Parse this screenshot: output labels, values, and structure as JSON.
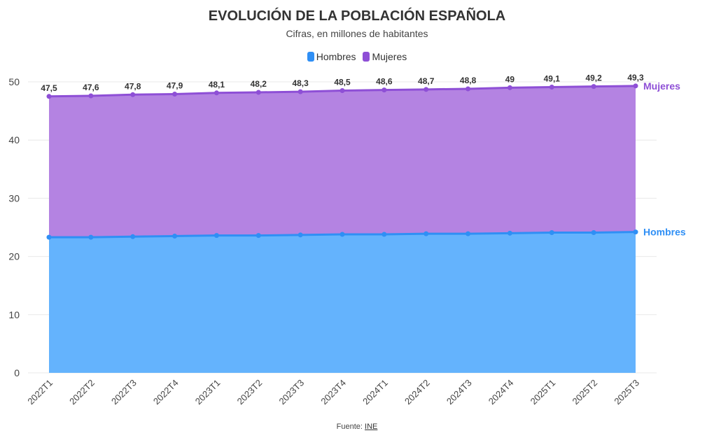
{
  "chart_data": {
    "type": "area",
    "stacked": true,
    "title": "EVOLUCIÓN DE LA POBLACIÓN ESPAÑOLA",
    "subtitle": "Cifras, en millones de habitantes",
    "categories": [
      "2022T1",
      "2022T2",
      "2022T3",
      "2022T4",
      "2023T1",
      "2023T2",
      "2023T3",
      "2023T4",
      "2024T1",
      "2024T2",
      "2024T3",
      "2024T4",
      "2025T1",
      "2025T2",
      "2025T3"
    ],
    "series": [
      {
        "name": "Hombres",
        "color": "#2f8ff5",
        "fill": "#64b3fd",
        "values": [
          23.3,
          23.3,
          23.4,
          23.5,
          23.6,
          23.6,
          23.7,
          23.8,
          23.8,
          23.9,
          23.9,
          24.0,
          24.1,
          24.1,
          24.2
        ]
      },
      {
        "name": "Mujeres",
        "color": "#8e4fd6",
        "fill": "#b483e2",
        "values": [
          24.2,
          24.3,
          24.4,
          24.4,
          24.5,
          24.6,
          24.6,
          24.7,
          24.8,
          24.8,
          24.9,
          25.0,
          25.0,
          25.1,
          25.1
        ]
      }
    ],
    "total_labels": [
      "47,5",
      "47,6",
      "47,8",
      "47,9",
      "48,1",
      "48,2",
      "48,3",
      "48,5",
      "48,6",
      "48,7",
      "48,8",
      "49",
      "49,1",
      "49,2",
      "49,3"
    ],
    "ylim": [
      0,
      50
    ],
    "yticks": [
      0,
      10,
      20,
      30,
      40,
      50
    ],
    "grid": true,
    "legend": "top",
    "source_label": "Fuente:",
    "source_link": "INE"
  }
}
